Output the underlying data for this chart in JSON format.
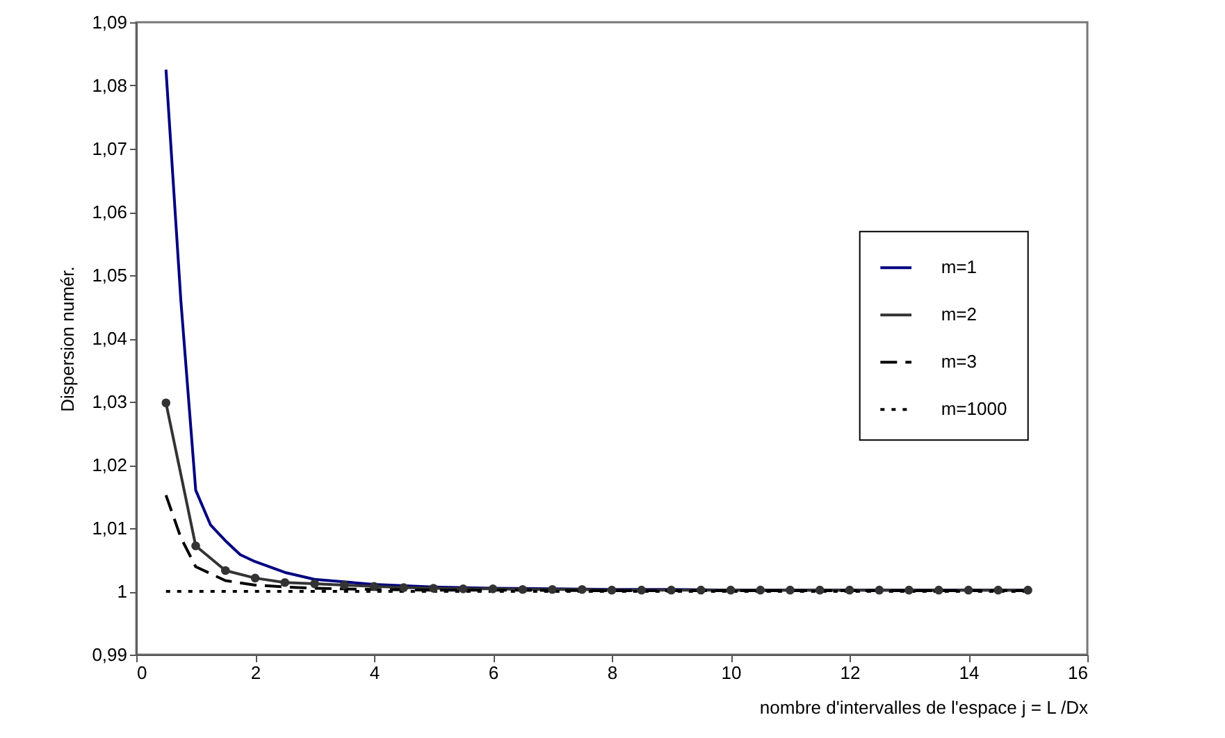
{
  "chart_data": {
    "type": "line",
    "xlabel": "nombre d'intervalles de l'espace j = L /Dx",
    "ylabel": "Dispersion numér.",
    "xlim": [
      0,
      16
    ],
    "xticks": [
      0,
      2,
      4,
      6,
      8,
      10,
      12,
      14,
      16
    ],
    "ylim": [
      0.99,
      1.09
    ],
    "yticks": [
      {
        "value": 0.99,
        "label": "0,99"
      },
      1,
      {
        "value": 1.01,
        "label": "1,01"
      },
      {
        "value": 1.02,
        "label": "1,02"
      },
      {
        "value": 1.03,
        "label": "1,03"
      },
      {
        "value": 1.04,
        "label": "1,04"
      },
      {
        "value": 1.05,
        "label": "1,05"
      },
      {
        "value": 1.06,
        "label": "1,06"
      },
      {
        "value": 1.07,
        "label": "1,07"
      },
      {
        "value": 1.08,
        "label": "1,08"
      },
      {
        "value": 1.09,
        "label": "1,09"
      }
    ],
    "grid": false,
    "legend": "right",
    "series": [
      {
        "name": "m=1",
        "color": "#000080",
        "line_style": "solid",
        "marker": "none",
        "x": [
          0.5,
          0.75,
          1,
          1.25,
          1.5,
          1.75,
          2,
          2.5,
          3,
          4,
          5,
          6,
          7,
          8,
          9,
          10,
          11,
          12,
          13,
          14,
          15
        ],
        "values": [
          1.0825,
          1.046,
          1.016,
          1.0105,
          1.008,
          1.0058,
          1.0047,
          1.003,
          1.0019,
          1.0011,
          1.0007,
          1.0005,
          1.0004,
          1.0003,
          1.0003,
          1.0002,
          1.0002,
          1.0002,
          1.0002,
          1.0002,
          1.0002
        ]
      },
      {
        "name": "m=2",
        "color": "#333333",
        "line_style": "solid",
        "marker": "circle",
        "x": [
          0.5,
          1,
          1.5,
          2,
          2.5,
          3,
          3.5,
          4,
          4.5,
          5,
          5.5,
          6,
          6.5,
          7,
          7.5,
          8,
          8.5,
          9,
          9.5,
          10,
          10.5,
          11,
          11.5,
          12,
          12.5,
          13,
          13.5,
          14,
          14.5,
          15
        ],
        "values": [
          1.0298,
          1.0072,
          1.0033,
          1.0021,
          1.0014,
          1.0012,
          1.001,
          1.0008,
          1.0006,
          1.0005,
          1.0004,
          1.0004,
          1.0003,
          1.0003,
          1.0003,
          1.0002,
          1.0002,
          1.0002,
          1.0002,
          1.0002,
          1.0002,
          1.0002,
          1.0002,
          1.0002,
          1.0002,
          1.0002,
          1.0002,
          1.0002,
          1.0002,
          1.0002
        ]
      },
      {
        "name": "m=3",
        "color": "#000000",
        "line_style": "dashed",
        "marker": "none",
        "x": [
          0.5,
          0.75,
          1,
          1.5,
          2,
          2.5,
          3,
          4,
          5,
          6,
          8,
          10,
          12,
          14,
          15
        ],
        "values": [
          1.0152,
          1.0085,
          1.0039,
          1.0017,
          1.001,
          1.0007,
          1.0005,
          1.0003,
          1.0002,
          1.0002,
          1.0001,
          1.0001,
          1.0001,
          1.0001,
          1.0001
        ]
      },
      {
        "name": "m=1000",
        "color": "#000000",
        "line_style": "dotted",
        "marker": "none",
        "x": [
          0.5,
          15
        ],
        "values": [
          1,
          1
        ]
      }
    ]
  }
}
